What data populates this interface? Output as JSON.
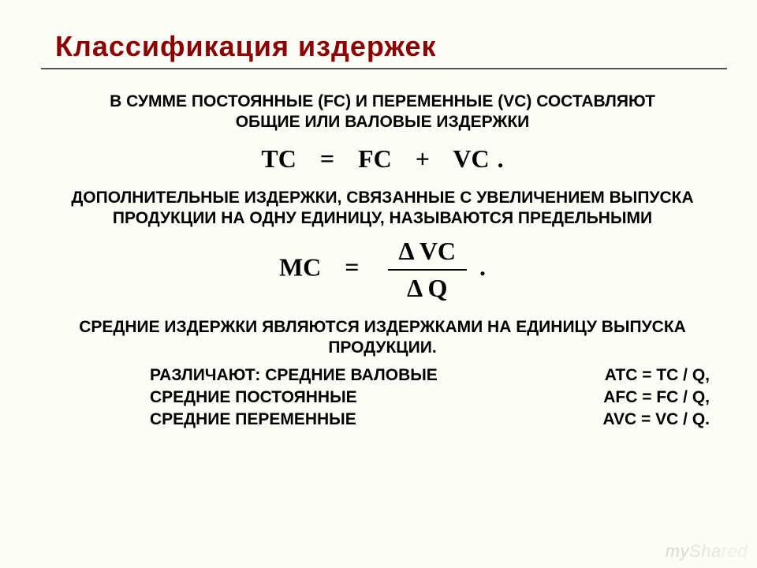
{
  "title": "Классификация издержек",
  "paragraphs": {
    "p1": "В СУММЕ ПОСТОЯННЫЕ (FC) И ПЕРЕМЕННЫЕ (VC) СОСТАВЛЯЮТ ОБЩИЕ ИЛИ ВАЛОВЫЕ ИЗДЕРЖКИ",
    "p2": "ДОПОЛНИТЕЛЬНЫЕ ИЗДЕРЖКИ, СВЯЗАННЫЕ С УВЕЛИЧЕНИЕМ ВЫПУСКА ПРОДУКЦИИ НА ОДНУ ЕДИНИЦУ, НАЗЫВАЮТСЯ ПРЕДЕЛЬНЫМИ",
    "p3": "СРЕДНИЕ ИЗДЕРЖКИ ЯВЛЯЮТСЯ ИЗДЕРЖКАМИ НА ЕДИНИЦУ ВЫПУСКА ПРОДУКЦИИ."
  },
  "formulas": {
    "tc": {
      "lhs": "TC",
      "eq": "=",
      "rhs1": "FC",
      "plus": "+",
      "rhs2": "VC",
      "period": "."
    },
    "mc": {
      "lhs": "MC",
      "eq": "=",
      "num": "Δ VC",
      "den": "Δ Q",
      "period": "."
    }
  },
  "definitions": {
    "row1": {
      "label": "РАЗЛИЧАЮТ: СРЕДНИЕ ВАЛОВЫЕ",
      "equation": "ATC = TC / Q,"
    },
    "row2": {
      "label": "СРЕДНИЕ ПОСТОЯННЫЕ",
      "equation": "AFC = FC / Q,"
    },
    "row3": {
      "label": "СРЕДНИЕ ПЕРЕМЕННЫЕ",
      "equation": "AVC = VC / Q."
    }
  },
  "watermark": {
    "part1": "my",
    "part2": "Sha",
    "part3": "red"
  },
  "colors": {
    "title": "#8b0000",
    "text": "#000000",
    "rule": "#555555",
    "background": "#fdfdf7"
  }
}
